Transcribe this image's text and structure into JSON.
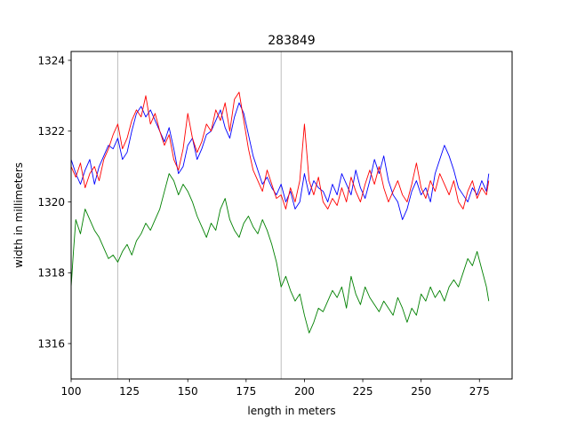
{
  "chart_data": {
    "type": "line",
    "title": "283849",
    "xlabel": "length in meters",
    "ylabel": "width in millimeters",
    "xlim": [
      100,
      289
    ],
    "ylim": [
      1315,
      1324.25
    ],
    "xticks": [
      100,
      125,
      150,
      175,
      200,
      225,
      250,
      275
    ],
    "yticks": [
      1316,
      1318,
      1320,
      1322,
      1324
    ],
    "xtick_labels": [
      "100",
      "125",
      "150",
      "175",
      "200",
      "225",
      "250",
      "275"
    ],
    "ytick_labels": [
      "1316",
      "1318",
      "1320",
      "1322",
      "1324"
    ],
    "vlines": [
      120,
      190
    ],
    "grid": false,
    "legend": "none",
    "series": [
      {
        "color": "#0000ff",
        "x": [
          100,
          102,
          104,
          106,
          108,
          110,
          112,
          114,
          116,
          118,
          120,
          122,
          124,
          126,
          128,
          130,
          132,
          134,
          136,
          138,
          140,
          142,
          144,
          146,
          148,
          150,
          152,
          154,
          156,
          158,
          160,
          162,
          164,
          166,
          168,
          170,
          172,
          174,
          176,
          178,
          180,
          182,
          184,
          186,
          188,
          190,
          192,
          194,
          196,
          198,
          200,
          202,
          204,
          206,
          208,
          210,
          212,
          214,
          216,
          218,
          220,
          222,
          224,
          226,
          228,
          230,
          232,
          234,
          236,
          238,
          240,
          242,
          244,
          246,
          248,
          250,
          252,
          254,
          256,
          258,
          260,
          262,
          264,
          266,
          268,
          270,
          272,
          274,
          276,
          278,
          279
        ],
        "y": [
          1321.2,
          1320.8,
          1320.5,
          1320.9,
          1321.2,
          1320.5,
          1321.0,
          1321.3,
          1321.6,
          1321.5,
          1321.8,
          1321.2,
          1321.4,
          1322.0,
          1322.5,
          1322.7,
          1322.4,
          1322.6,
          1322.3,
          1322.0,
          1321.7,
          1322.1,
          1321.5,
          1320.8,
          1321.0,
          1321.6,
          1321.8,
          1321.2,
          1321.5,
          1321.9,
          1322.0,
          1322.3,
          1322.6,
          1322.1,
          1321.8,
          1322.4,
          1322.8,
          1322.5,
          1321.9,
          1321.3,
          1320.9,
          1320.5,
          1320.7,
          1320.4,
          1320.2,
          1320.5,
          1320.0,
          1320.3,
          1319.8,
          1320.0,
          1320.8,
          1320.2,
          1320.6,
          1320.4,
          1320.3,
          1320.0,
          1320.5,
          1320.2,
          1320.8,
          1320.5,
          1320.2,
          1320.9,
          1320.4,
          1320.1,
          1320.6,
          1321.2,
          1320.8,
          1321.3,
          1320.6,
          1320.2,
          1320.0,
          1319.5,
          1319.8,
          1320.3,
          1320.6,
          1320.2,
          1320.4,
          1320.0,
          1320.8,
          1321.2,
          1321.6,
          1321.3,
          1320.9,
          1320.4,
          1320.2,
          1320.0,
          1320.4,
          1320.2,
          1320.6,
          1320.3,
          1320.8
        ]
      },
      {
        "color": "#ff0000",
        "x": [
          100,
          102,
          104,
          106,
          108,
          110,
          112,
          114,
          116,
          118,
          120,
          122,
          124,
          126,
          128,
          130,
          132,
          134,
          136,
          138,
          140,
          142,
          144,
          146,
          148,
          150,
          152,
          154,
          156,
          158,
          160,
          162,
          164,
          166,
          168,
          170,
          172,
          174,
          176,
          178,
          180,
          182,
          184,
          186,
          188,
          190,
          192,
          194,
          196,
          198,
          200,
          202,
          204,
          206,
          208,
          210,
          212,
          214,
          216,
          218,
          220,
          222,
          224,
          226,
          228,
          230,
          232,
          234,
          236,
          238,
          240,
          242,
          244,
          246,
          248,
          250,
          252,
          254,
          256,
          258,
          260,
          262,
          264,
          266,
          268,
          270,
          272,
          274,
          276,
          278,
          279
        ],
        "y": [
          1321.0,
          1320.7,
          1321.1,
          1320.4,
          1320.8,
          1321.0,
          1320.6,
          1321.2,
          1321.5,
          1321.9,
          1322.2,
          1321.5,
          1321.8,
          1322.3,
          1322.6,
          1322.4,
          1323.0,
          1322.2,
          1322.5,
          1322.0,
          1321.6,
          1321.9,
          1321.2,
          1320.9,
          1321.5,
          1322.5,
          1321.8,
          1321.4,
          1321.7,
          1322.2,
          1322.0,
          1322.6,
          1322.3,
          1322.8,
          1322.0,
          1322.9,
          1323.1,
          1322.3,
          1321.5,
          1320.9,
          1320.6,
          1320.3,
          1320.9,
          1320.5,
          1320.1,
          1320.2,
          1319.8,
          1320.4,
          1320.0,
          1320.6,
          1322.2,
          1320.6,
          1320.2,
          1320.7,
          1320.0,
          1319.8,
          1320.1,
          1319.9,
          1320.4,
          1320.0,
          1320.7,
          1320.3,
          1320.0,
          1320.5,
          1320.9,
          1320.5,
          1321.0,
          1320.4,
          1320.0,
          1320.3,
          1320.6,
          1320.2,
          1320.0,
          1320.5,
          1321.1,
          1320.4,
          1320.1,
          1320.6,
          1320.3,
          1320.8,
          1320.5,
          1320.2,
          1320.6,
          1320.0,
          1319.8,
          1320.3,
          1320.6,
          1320.1,
          1320.4,
          1320.2,
          1320.6
        ]
      },
      {
        "color": "#008000",
        "x": [
          100,
          101,
          102,
          103,
          104,
          106,
          108,
          110,
          112,
          114,
          116,
          118,
          120,
          122,
          124,
          126,
          128,
          130,
          132,
          134,
          136,
          138,
          140,
          142,
          144,
          146,
          148,
          150,
          152,
          154,
          156,
          158,
          160,
          162,
          164,
          166,
          168,
          170,
          172,
          174,
          176,
          178,
          180,
          182,
          184,
          186,
          188,
          190,
          192,
          194,
          196,
          198,
          200,
          202,
          204,
          206,
          208,
          210,
          212,
          214,
          216,
          218,
          220,
          222,
          224,
          226,
          228,
          230,
          232,
          234,
          236,
          238,
          240,
          242,
          244,
          246,
          248,
          250,
          252,
          254,
          256,
          258,
          260,
          262,
          264,
          266,
          268,
          270,
          272,
          274,
          276,
          278,
          279
        ],
        "y": [
          1317.6,
          1318.6,
          1319.5,
          1319.3,
          1319.1,
          1319.8,
          1319.5,
          1319.2,
          1319.0,
          1318.7,
          1318.4,
          1318.5,
          1318.3,
          1318.6,
          1318.8,
          1318.5,
          1318.9,
          1319.1,
          1319.4,
          1319.2,
          1319.5,
          1319.8,
          1320.3,
          1320.8,
          1320.6,
          1320.2,
          1320.5,
          1320.3,
          1320.0,
          1319.6,
          1319.3,
          1319.0,
          1319.4,
          1319.2,
          1319.8,
          1320.1,
          1319.5,
          1319.2,
          1319.0,
          1319.4,
          1319.6,
          1319.3,
          1319.1,
          1319.5,
          1319.2,
          1318.8,
          1318.3,
          1317.6,
          1317.9,
          1317.5,
          1317.2,
          1317.4,
          1316.8,
          1316.3,
          1316.6,
          1317.0,
          1316.9,
          1317.2,
          1317.5,
          1317.3,
          1317.6,
          1317.0,
          1317.9,
          1317.4,
          1317.1,
          1317.6,
          1317.3,
          1317.1,
          1316.9,
          1317.2,
          1317.0,
          1316.8,
          1317.3,
          1317.0,
          1316.6,
          1317.0,
          1316.8,
          1317.4,
          1317.2,
          1317.6,
          1317.3,
          1317.5,
          1317.2,
          1317.6,
          1317.8,
          1317.6,
          1318.0,
          1318.4,
          1318.2,
          1318.6,
          1318.1,
          1317.6,
          1317.2
        ]
      }
    ]
  }
}
